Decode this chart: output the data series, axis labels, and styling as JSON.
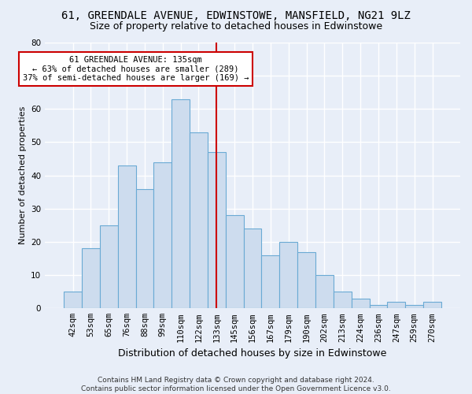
{
  "title1": "61, GREENDALE AVENUE, EDWINSTOWE, MANSFIELD, NG21 9LZ",
  "title2": "Size of property relative to detached houses in Edwinstowe",
  "xlabel": "Distribution of detached houses by size in Edwinstowe",
  "ylabel": "Number of detached properties",
  "footnote": "Contains HM Land Registry data © Crown copyright and database right 2024.\nContains public sector information licensed under the Open Government Licence v3.0.",
  "categories": [
    "42sqm",
    "53sqm",
    "65sqm",
    "76sqm",
    "88sqm",
    "99sqm",
    "110sqm",
    "122sqm",
    "133sqm",
    "145sqm",
    "156sqm",
    "167sqm",
    "179sqm",
    "190sqm",
    "202sqm",
    "213sqm",
    "224sqm",
    "236sqm",
    "247sqm",
    "259sqm",
    "270sqm"
  ],
  "values": [
    5,
    18,
    25,
    43,
    36,
    44,
    63,
    53,
    47,
    28,
    24,
    16,
    20,
    17,
    10,
    5,
    3,
    1,
    2,
    1,
    2
  ],
  "bar_color": "#cddcee",
  "bar_edge_color": "#6aaad4",
  "vline_x_index": 8,
  "vline_color": "#cc0000",
  "annotation_text": "61 GREENDALE AVENUE: 135sqm\n← 63% of detached houses are smaller (289)\n37% of semi-detached houses are larger (169) →",
  "annotation_box_facecolor": "#ffffff",
  "annotation_box_edgecolor": "#cc0000",
  "ylim": [
    0,
    80
  ],
  "yticks": [
    0,
    10,
    20,
    30,
    40,
    50,
    60,
    70,
    80
  ],
  "background_color": "#e8eef8",
  "grid_color": "#ffffff",
  "title1_fontsize": 10,
  "title2_fontsize": 9,
  "xlabel_fontsize": 9,
  "ylabel_fontsize": 8,
  "tick_fontsize": 7.5,
  "annotation_fontsize": 7.5,
  "footnote_fontsize": 6.5
}
